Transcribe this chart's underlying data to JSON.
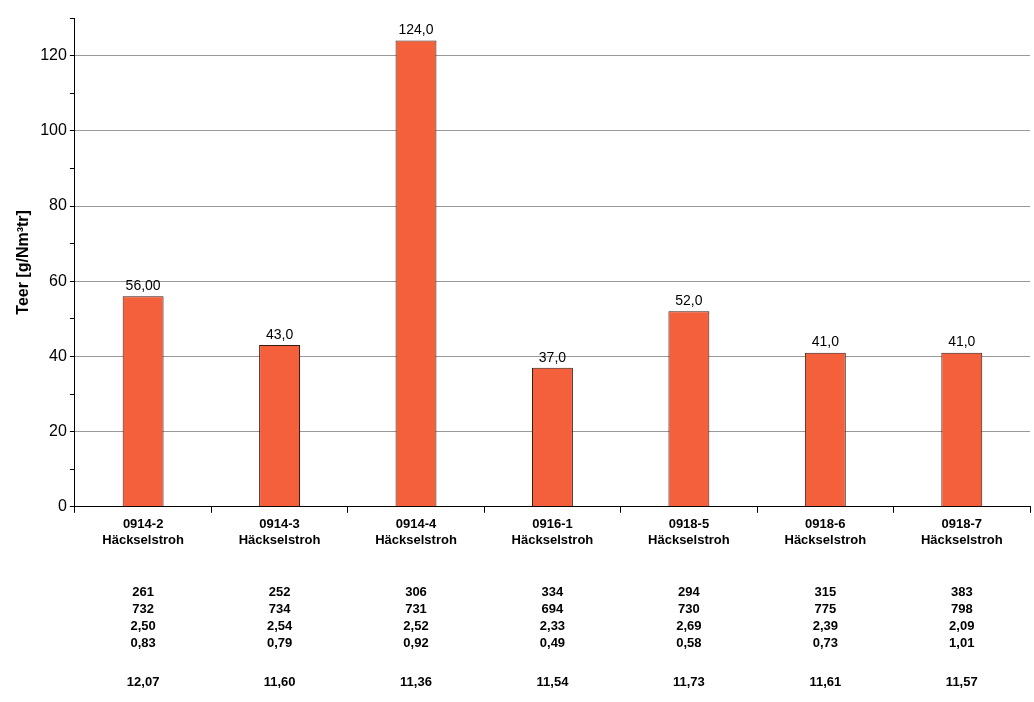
{
  "chart_data": {
    "type": "bar",
    "ylabel": "Teer [g/Nm³tr]",
    "categories": [
      "0914-2 Häckselstroh",
      "0914-3 Häckselstroh",
      "0914-4 Häckselstroh",
      "0916-1 Häckselstroh",
      "0918-5 Häckselstroh",
      "0918-6 Häckselstroh",
      "0918-7 Häckselstroh"
    ],
    "values": [
      56,
      43,
      124,
      37,
      52,
      41,
      41
    ],
    "value_labels": [
      "56,00",
      "43,0",
      "124,0",
      "37,0",
      "52,0",
      "41,0",
      "41,0"
    ],
    "color": "#f4603c",
    "ylim": [
      0,
      130
    ],
    "yticks": [
      0,
      {
        "value": 10,
        "label": null
      },
      20,
      {
        "value": 30,
        "label": null
      },
      40,
      {
        "value": 50,
        "label": null
      },
      60,
      {
        "value": 70,
        "label": null
      },
      80,
      {
        "value": 90,
        "label": null
      },
      100,
      {
        "value": 110,
        "label": null
      },
      120,
      {
        "value": 130,
        "label": null
      }
    ],
    "grid": "y",
    "legend": false,
    "annotations": [
      "261",
      "252",
      "306",
      "334",
      "294",
      "315",
      "383",
      "732",
      "734",
      "731",
      "694",
      "730",
      "775",
      "798",
      "2,50",
      "2,54",
      "2,52",
      "2,33",
      "2,69",
      "2,39",
      "2,09",
      "0,83",
      "0,79",
      "0,92",
      "0,49",
      "0,58",
      "0,73",
      "1,01",
      "12,07",
      "11,60",
      "11,36",
      "11,54",
      "11,73",
      "11,61",
      "11,57"
    ]
  }
}
